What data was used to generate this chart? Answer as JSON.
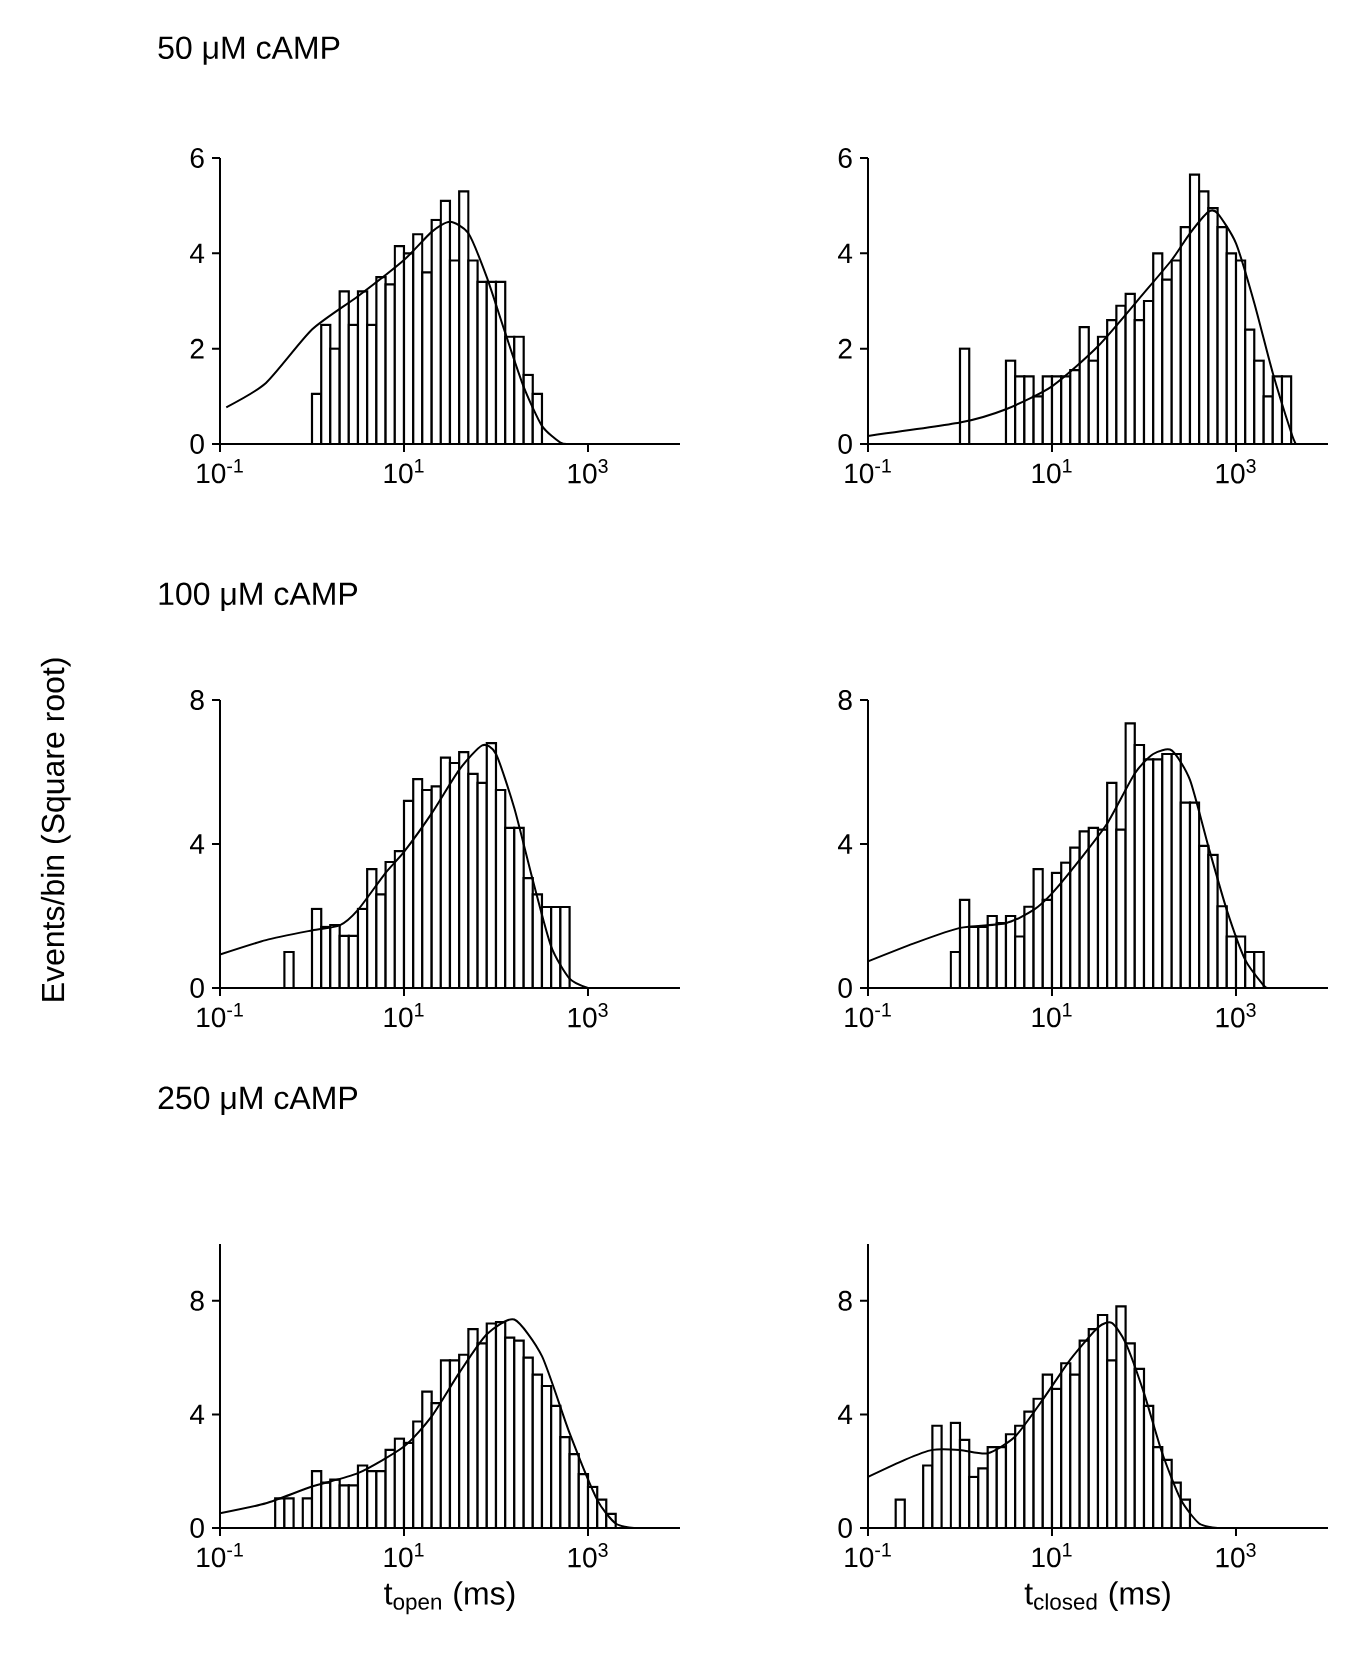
{
  "chart_data": [
    {
      "type": "histogram",
      "title": "50 μM cAMP",
      "log": "x",
      "xlim": [
        0.1,
        10000
      ],
      "xticks": [
        {
          "value": 0.1,
          "label": "10$^{-1}$"
        },
        {
          "value": 10,
          "label": "10$^{1}$"
        },
        {
          "value": 1000,
          "label": "10$^{3}$"
        }
      ],
      "ylim": [
        0,
        6
      ],
      "yticks": [
        0,
        2,
        4,
        6
      ],
      "color": "#000000",
      "bins": [
        1,
        1.26,
        1.58,
        2,
        2.51,
        3.16,
        3.98,
        5.01,
        6.31,
        7.94,
        10,
        12.6,
        15.8,
        20,
        25.1,
        31.6,
        39.8,
        50.1,
        63.1,
        79.4,
        100,
        126,
        158,
        200,
        251,
        316
      ],
      "values": [
        1.05,
        2.5,
        2.0,
        3.2,
        2.5,
        3.2,
        2.5,
        3.5,
        3.35,
        4.15,
        4.0,
        4.4,
        3.6,
        4.7,
        5.1,
        3.85,
        5.3,
        3.85,
        3.4,
        3.4,
        3.4,
        2.25,
        2.25,
        1.45,
        1.05
      ],
      "series": [
        {
          "type": "line",
          "color": "#000000",
          "x": [
            0.117,
            0.316,
            1,
            3.16,
            10,
            20,
            31.6,
            50.1,
            79.4,
            126,
            200,
            316,
            501,
            631
          ],
          "values": [
            0.77,
            1.28,
            2.4,
            3.1,
            3.86,
            4.45,
            4.66,
            4.42,
            3.5,
            2.33,
            1.2,
            0.38,
            0.03,
            0
          ]
        }
      ]
    },
    {
      "type": "histogram",
      "log": "x",
      "xlim": [
        0.1,
        10000
      ],
      "xticks": [
        {
          "value": 0.1,
          "label": "10$^{-1}$"
        },
        {
          "value": 10,
          "label": "10$^{1}$"
        },
        {
          "value": 1000,
          "label": "10$^{3}$"
        }
      ],
      "ylim": [
        0,
        6
      ],
      "yticks": [
        0,
        2,
        4,
        6
      ],
      "color": "#000000",
      "bins": [
        1,
        1.26,
        1.58,
        2,
        2.51,
        3.16,
        3.98,
        5.01,
        6.31,
        7.94,
        10,
        12.6,
        15.8,
        20,
        25.1,
        31.6,
        39.8,
        50.1,
        63.1,
        79.4,
        100,
        126,
        158,
        200,
        251,
        316,
        398,
        501,
        631,
        794,
        1000,
        1260,
        1580,
        2000,
        2510,
        3160,
        3980
      ],
      "values": [
        2.0,
        0,
        0,
        0,
        0,
        1.75,
        1.42,
        1.42,
        1.0,
        1.42,
        1.42,
        1.42,
        1.55,
        2.45,
        1.75,
        2.25,
        2.6,
        2.9,
        3.15,
        2.6,
        3.0,
        4.0,
        3.45,
        3.85,
        4.55,
        5.65,
        5.3,
        4.95,
        4.55,
        4.0,
        3.85,
        2.4,
        1.75,
        1.0,
        1.42,
        1.42
      ],
      "series": [
        {
          "type": "line",
          "color": "#000000",
          "x": [
            0.1,
            1,
            3.16,
            10,
            31.6,
            100,
            200,
            316,
            501,
            631,
            1000,
            1580,
            2510,
            3980,
            4470
          ],
          "values": [
            0.17,
            0.45,
            0.73,
            1.21,
            2.05,
            3.17,
            3.86,
            4.42,
            4.87,
            4.84,
            4.21,
            2.96,
            1.49,
            0.24,
            0
          ]
        }
      ]
    },
    {
      "type": "histogram",
      "title": "100 μM cAMP",
      "ylabel": "Events/bin (Square root)",
      "log": "x",
      "xlim": [
        0.1,
        10000
      ],
      "xticks": [
        {
          "value": 0.1,
          "label": "10$^{-1}$"
        },
        {
          "value": 10,
          "label": "10$^{1}$"
        },
        {
          "value": 1000,
          "label": "10$^{3}$"
        }
      ],
      "ylim": [
        0,
        8
      ],
      "yticks": [
        0,
        4,
        8
      ],
      "color": "#000000",
      "bins": [
        0.501,
        0.631,
        0.794,
        1,
        1.26,
        1.58,
        2,
        2.51,
        3.16,
        3.98,
        5.01,
        6.31,
        7.94,
        10,
        12.6,
        15.8,
        20,
        25.1,
        31.6,
        39.8,
        50.1,
        63.1,
        79.4,
        100,
        126,
        158,
        200,
        251,
        316,
        398,
        501,
        631
      ],
      "values": [
        1.0,
        0,
        0,
        2.2,
        1.7,
        1.75,
        1.45,
        1.45,
        2.2,
        3.3,
        2.6,
        3.5,
        3.8,
        5.2,
        5.8,
        5.5,
        5.6,
        6.4,
        6.25,
        6.55,
        5.95,
        5.7,
        6.8,
        5.5,
        4.45,
        4.45,
        3.05,
        2.6,
        2.25,
        2.25,
        2.25
      ],
      "series": [
        {
          "type": "line",
          "color": "#000000",
          "x": [
            0.1,
            0.316,
            1,
            2,
            3.16,
            6.31,
            10,
            20,
            39.8,
            70.8,
            100,
            158,
            251,
            398,
            631,
            1000
          ],
          "values": [
            0.93,
            1.33,
            1.6,
            1.74,
            2.17,
            3.2,
            3.78,
            4.85,
            6.06,
            6.74,
            6.5,
            5.0,
            3.0,
            1.15,
            0.26,
            0
          ]
        }
      ]
    },
    {
      "type": "histogram",
      "log": "x",
      "xlim": [
        0.1,
        10000
      ],
      "xticks": [
        {
          "value": 0.1,
          "label": "10$^{-1}$"
        },
        {
          "value": 10,
          "label": "10$^{1}$"
        },
        {
          "value": 1000,
          "label": "10$^{3}$"
        }
      ],
      "ylim": [
        0,
        8
      ],
      "yticks": [
        0,
        4,
        8
      ],
      "color": "#000000",
      "bins": [
        0.794,
        1,
        1.26,
        1.58,
        2,
        2.51,
        3.16,
        3.98,
        5.01,
        6.31,
        7.94,
        10,
        12.6,
        15.8,
        20,
        25.1,
        31.6,
        39.8,
        50.1,
        63.1,
        79.4,
        100,
        126,
        158,
        200,
        251,
        316,
        398,
        501,
        631,
        794,
        1000,
        1260,
        1580,
        2000
      ],
      "values": [
        1.0,
        2.45,
        1.7,
        1.7,
        2.0,
        1.8,
        2.0,
        1.43,
        2.26,
        3.3,
        2.45,
        3.2,
        3.48,
        3.9,
        4.35,
        4.45,
        4.4,
        5.7,
        4.4,
        7.35,
        6.75,
        6.35,
        6.35,
        6.5,
        6.5,
        5.15,
        5.15,
        3.95,
        3.7,
        2.27,
        1.43,
        1.43,
        1.0,
        1.0
      ],
      "series": [
        {
          "type": "line",
          "color": "#000000",
          "x": [
            0.1,
            0.316,
            1,
            3.16,
            6.31,
            10,
            20,
            39.8,
            79.4,
            126,
            200,
            316,
            501,
            794,
            1260,
            2000,
            2240
          ],
          "values": [
            0.74,
            1.24,
            1.67,
            1.8,
            2.17,
            2.63,
            3.56,
            4.57,
            5.96,
            6.5,
            6.6,
            5.78,
            3.93,
            2.17,
            0.78,
            0.07,
            0
          ]
        }
      ]
    },
    {
      "type": "histogram",
      "title": "250 μM cAMP",
      "xlabel": "t$_{open}$ (ms)",
      "log": "x",
      "xlim": [
        0.1,
        10000
      ],
      "xticks": [
        {
          "value": 0.1,
          "label": "10$^{-1}$"
        },
        {
          "value": 10,
          "label": "10$^{1}$"
        },
        {
          "value": 1000,
          "label": "10$^{3}$"
        }
      ],
      "ylim": [
        0,
        10
      ],
      "yticks": [
        0,
        4,
        8
      ],
      "color": "#000000",
      "bins": [
        0.398,
        0.501,
        0.631,
        0.794,
        1,
        1.26,
        1.58,
        2,
        2.51,
        3.16,
        3.98,
        5.01,
        6.31,
        7.94,
        10,
        12.6,
        15.8,
        20,
        25.1,
        31.6,
        39.8,
        50.1,
        63.1,
        79.4,
        100,
        126,
        158,
        200,
        251,
        316,
        398,
        501,
        631,
        794,
        1000,
        1260,
        1580,
        2000
      ],
      "values": [
        1.04,
        1.04,
        0,
        1.04,
        2.0,
        1.6,
        1.7,
        1.5,
        1.5,
        2.2,
        2.0,
        2.0,
        2.75,
        3.15,
        3.0,
        3.75,
        4.8,
        4.4,
        5.9,
        5.9,
        6.1,
        7.0,
        6.5,
        7.2,
        7.25,
        6.7,
        6.6,
        6.0,
        5.4,
        5.0,
        4.3,
        3.2,
        2.6,
        1.9,
        1.45,
        1.0,
        0.5
      ],
      "series": [
        {
          "type": "line",
          "color": "#000000",
          "x": [
            0.1,
            0.316,
            1,
            3.16,
            10,
            20,
            39.8,
            79.4,
            158,
            316,
            631,
            1260,
            2000,
            3160
          ],
          "values": [
            0.52,
            0.87,
            1.46,
            1.93,
            2.87,
            3.93,
            5.46,
            6.82,
            7.34,
            6.05,
            3.34,
            0.99,
            0.16,
            0
          ]
        }
      ]
    },
    {
      "type": "histogram",
      "xlabel": "t$_{closed}$ (ms)",
      "log": "x",
      "xlim": [
        0.1,
        10000
      ],
      "xticks": [
        {
          "value": 0.1,
          "label": "10$^{-1}$"
        },
        {
          "value": 10,
          "label": "10$^{1}$"
        },
        {
          "value": 1000,
          "label": "10$^{3}$"
        }
      ],
      "ylim": [
        0,
        10
      ],
      "yticks": [
        0,
        4,
        8
      ],
      "color": "#000000",
      "bins": [
        0.2,
        0.251,
        0.316,
        0.398,
        0.501,
        0.631,
        0.794,
        1,
        1.26,
        1.58,
        2,
        2.51,
        3.16,
        3.98,
        5.01,
        6.31,
        7.94,
        10,
        12.6,
        15.8,
        20,
        25.1,
        31.6,
        39.8,
        50.1,
        63.1,
        79.4,
        100,
        126,
        158,
        200,
        251,
        316
      ],
      "values": [
        1.0,
        0,
        0,
        2.2,
        3.6,
        0,
        3.7,
        3.1,
        1.8,
        2.1,
        2.85,
        2.85,
        3.3,
        3.6,
        4.1,
        4.55,
        5.4,
        4.9,
        5.8,
        5.4,
        6.6,
        7.0,
        7.5,
        5.9,
        7.8,
        6.5,
        5.6,
        4.3,
        2.85,
        2.4,
        1.6,
        1.0
      ],
      "series": [
        {
          "type": "line",
          "color": "#000000",
          "x": [
            0.1,
            0.251,
            0.501,
            1,
            2,
            3.98,
            7.94,
            15.8,
            31.6,
            44.7,
            63.1,
            100,
            158,
            251,
            398,
            631
          ],
          "values": [
            1.8,
            2.4,
            2.75,
            2.75,
            2.63,
            3.22,
            4.52,
            5.93,
            7.06,
            7.22,
            6.52,
            4.75,
            2.63,
            1.0,
            0.16,
            0
          ]
        }
      ]
    }
  ]
}
